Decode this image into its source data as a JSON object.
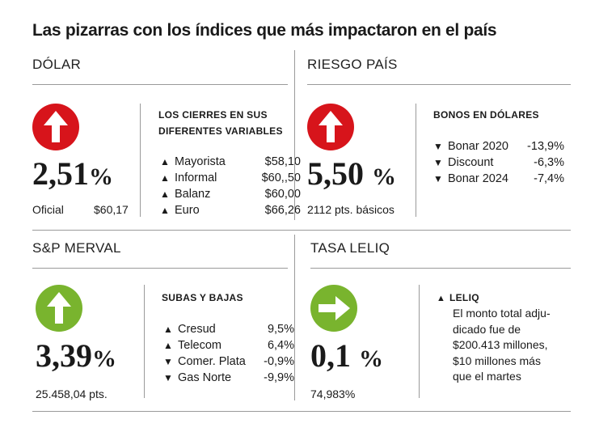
{
  "title": "Las pizarras con los índices que más impactaron en el país",
  "dolar": {
    "label": "DÓLAR",
    "value": "2,51",
    "pct_sign": "%",
    "trend_icon": "arrow-up",
    "color": "#d7141b",
    "sub_label": "Oficial",
    "sub_value": "$60,17",
    "panel_title": "LOS CIERRES EN SUS\nDIFERENTES VARIABLES",
    "rows": [
      {
        "arrow": "▲",
        "name": "Mayorista",
        "value": "$58,10"
      },
      {
        "arrow": "▲",
        "name": "Informal",
        "value": "$60,,50"
      },
      {
        "arrow": "▲",
        "name": "Balanz",
        "value": "$60,00"
      },
      {
        "arrow": "▲",
        "name": "Euro",
        "value": "$66,26"
      }
    ]
  },
  "riesgo": {
    "label": "RIESGO PAÍS",
    "value": "5,50",
    "pct_sign": "%",
    "trend_icon": "arrow-up",
    "color": "#d7141b",
    "sub_text": "2112 pts. básicos",
    "panel_title": "BONOS EN DÓLARES",
    "rows": [
      {
        "arrow": "▼",
        "name": "Bonar 2020",
        "value": "-13,9%"
      },
      {
        "arrow": "▼",
        "name": "Discount",
        "value": "-6,3%"
      },
      {
        "arrow": "▼",
        "name": "Bonar 2024",
        "value": "-7,4%"
      }
    ]
  },
  "merval": {
    "label": "S&P MERVAL",
    "value": "3,39",
    "pct_sign": "%",
    "trend_icon": "arrow-up",
    "color": "#79b42e",
    "sub_text": "25.458,04  pts.",
    "panel_title": "SUBAS Y BAJAS",
    "rows": [
      {
        "arrow": "▲",
        "name": "Cresud",
        "value": "9,5%"
      },
      {
        "arrow": "▲",
        "name": "Telecom",
        "value": "6,4%"
      },
      {
        "arrow": "▼",
        "name": "Comer. Plata",
        "value": "-0,9%"
      },
      {
        "arrow": "▼",
        "name": "Gas Norte",
        "value": "-9,9%"
      }
    ]
  },
  "leliq": {
    "label": "TASA LELIQ",
    "value": "0,1",
    "pct_sign": "%",
    "trend_icon": "arrow-right",
    "color": "#79b42e",
    "sub_text": "74,983%",
    "panel_arrow": "▲",
    "panel_title": "LELIQ",
    "note": "El monto total adju-\ndicado fue de\n$200.413 millones,\n$10 millones más\nque el martes"
  }
}
